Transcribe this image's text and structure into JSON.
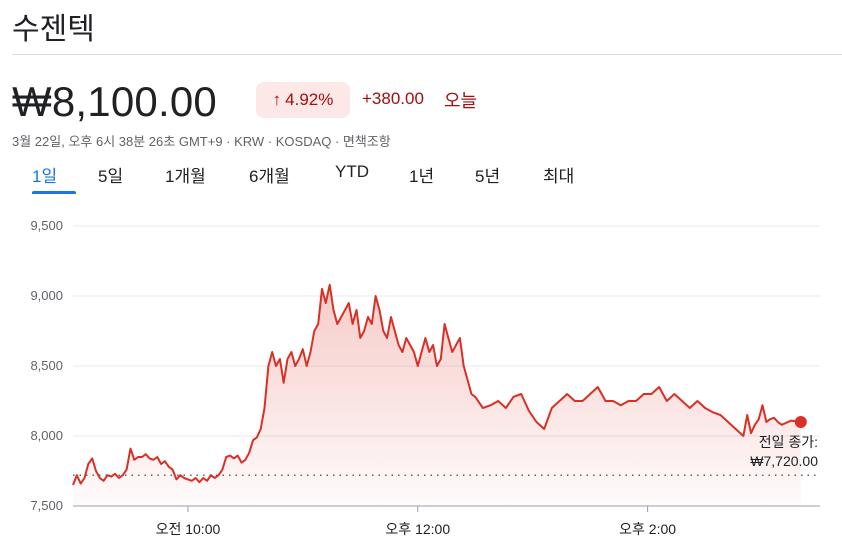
{
  "header": {
    "title": "수젠텍",
    "price": "₩8,100.00",
    "change_percent": "4.92%",
    "change_absolute": "+380.00",
    "change_label": "오늘",
    "meta": "3월 22일, 오후 6시 38분 26초 GMT+9 · KRW · KOSDAQ · 면책조항"
  },
  "tabs": [
    {
      "label": "1일",
      "active": true
    },
    {
      "label": "5일",
      "active": false
    },
    {
      "label": "1개월",
      "active": false
    },
    {
      "label": "6개월",
      "active": false
    },
    {
      "label": "YTD",
      "active": false
    },
    {
      "label": "1년",
      "active": false
    },
    {
      "label": "5년",
      "active": false
    },
    {
      "label": "최대",
      "active": false
    }
  ],
  "colors": {
    "line": "#d93025",
    "accent": "#1a73e8",
    "negative_text": "#a50e0e",
    "badge_bg": "#fce8e6",
    "grid": "#e8eaed"
  },
  "chart_data": {
    "type": "line",
    "title": "",
    "xlabel": "",
    "ylabel": "",
    "ylim": [
      7500,
      9500
    ],
    "y_ticks": [
      7500,
      8000,
      8500,
      9000,
      9500
    ],
    "y_tick_labels": [
      "7,500",
      "8,000",
      "8,500",
      "9,000",
      "9,500"
    ],
    "xlim": [
      "09:00",
      "15:30"
    ],
    "x_ticks": [
      "10:00",
      "12:00",
      "14:00"
    ],
    "x_tick_labels": [
      "오전 10:00",
      "오후 12:00",
      "오후 2:00"
    ],
    "grid": true,
    "previous_close": 7720,
    "previous_close_label": "전일 종가:",
    "previous_close_value": "₩7,720.00",
    "last_value": 8100,
    "series": [
      {
        "x": [
          "09:00",
          "09:02",
          "09:04",
          "09:06",
          "09:08",
          "09:10",
          "09:12",
          "09:14",
          "09:16",
          "09:18",
          "09:20",
          "09:22",
          "09:24",
          "09:26",
          "09:28",
          "09:30",
          "09:32",
          "09:34",
          "09:36",
          "09:38",
          "09:40",
          "09:42",
          "09:44",
          "09:46",
          "09:48",
          "09:50",
          "09:52",
          "09:54",
          "09:56",
          "09:58",
          "10:00",
          "10:02",
          "10:04",
          "10:06",
          "10:08",
          "10:10",
          "10:12",
          "10:14",
          "10:16",
          "10:18",
          "10:20",
          "10:22",
          "10:24",
          "10:26",
          "10:28",
          "10:30",
          "10:32",
          "10:34",
          "10:36",
          "10:38",
          "10:40",
          "10:42",
          "10:44",
          "10:46",
          "10:48",
          "10:50",
          "10:52",
          "10:54",
          "10:56",
          "10:58",
          "11:00",
          "11:02",
          "11:04",
          "11:06",
          "11:08",
          "11:10",
          "11:12",
          "11:14",
          "11:16",
          "11:18",
          "11:20",
          "11:22",
          "11:24",
          "11:26",
          "11:28",
          "11:30",
          "11:32",
          "11:34",
          "11:36",
          "11:38",
          "11:40",
          "11:42",
          "11:44",
          "11:46",
          "11:48",
          "11:50",
          "11:52",
          "11:54",
          "11:56",
          "11:58",
          "12:00",
          "12:02",
          "12:04",
          "12:06",
          "12:08",
          "12:10",
          "12:12",
          "12:14",
          "12:16",
          "12:18",
          "12:20",
          "12:22",
          "12:24",
          "12:26",
          "12:28",
          "12:30",
          "12:34",
          "12:38",
          "12:42",
          "12:46",
          "12:50",
          "12:54",
          "12:58",
          "13:02",
          "13:06",
          "13:10",
          "13:14",
          "13:18",
          "13:22",
          "13:26",
          "13:30",
          "13:34",
          "13:38",
          "13:42",
          "13:46",
          "13:50",
          "13:54",
          "13:58",
          "14:02",
          "14:06",
          "14:10",
          "14:14",
          "14:18",
          "14:22",
          "14:26",
          "14:30",
          "14:34",
          "14:38",
          "14:42",
          "14:46",
          "14:50",
          "14:52",
          "14:54",
          "14:56",
          "14:58",
          "15:00",
          "15:02",
          "15:04",
          "15:06",
          "15:08",
          "15:10",
          "15:15",
          "15:20"
        ],
        "values": [
          7650,
          7720,
          7660,
          7700,
          7800,
          7840,
          7750,
          7700,
          7680,
          7720,
          7710,
          7730,
          7700,
          7720,
          7760,
          7910,
          7830,
          7850,
          7850,
          7870,
          7840,
          7830,
          7850,
          7800,
          7820,
          7780,
          7760,
          7690,
          7720,
          7700,
          7690,
          7680,
          7700,
          7670,
          7700,
          7680,
          7720,
          7700,
          7720,
          7760,
          7850,
          7860,
          7840,
          7860,
          7810,
          7830,
          7880,
          7970,
          7990,
          8050,
          8200,
          8500,
          8600,
          8500,
          8550,
          8380,
          8550,
          8600,
          8500,
          8550,
          8620,
          8500,
          8600,
          8750,
          8800,
          9050,
          8950,
          9080,
          8900,
          8800,
          8850,
          8900,
          8950,
          8800,
          8900,
          8700,
          8750,
          8850,
          8800,
          9000,
          8900,
          8750,
          8700,
          8850,
          8750,
          8650,
          8600,
          8700,
          8650,
          8600,
          8500,
          8600,
          8700,
          8600,
          8650,
          8500,
          8550,
          8800,
          8700,
          8600,
          8650,
          8700,
          8500,
          8400,
          8300,
          8280,
          8200,
          8220,
          8250,
          8200,
          8280,
          8300,
          8180,
          8100,
          8050,
          8200,
          8250,
          8300,
          8250,
          8250,
          8300,
          8350,
          8250,
          8250,
          8220,
          8250,
          8250,
          8300,
          8300,
          8350,
          8250,
          8300,
          8250,
          8200,
          8250,
          8200,
          8170,
          8150,
          8100,
          8050,
          8000,
          8150,
          8020,
          8080,
          8120,
          8220,
          8100,
          8120,
          8130,
          8100,
          8080,
          8110,
          8100
        ]
      }
    ]
  }
}
